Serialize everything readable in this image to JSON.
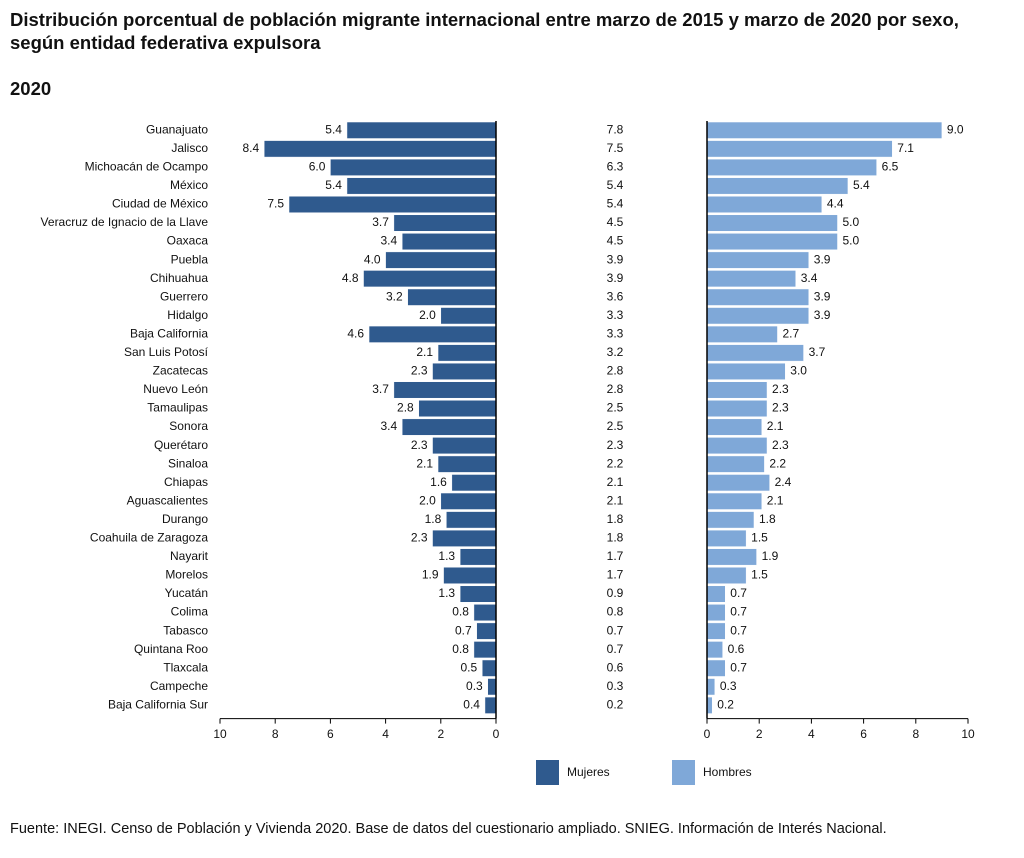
{
  "chart_data": {
    "type": "butterfly",
    "title": "Distribución porcentual de población migrante internacional entre marzo de 2015 y marzo de 2020 por sexo, según entidad federativa expulsora",
    "subtitle": "2020",
    "source": "Fuente: INEGI. Censo de Población y Vivienda 2020. Base de datos del cuestionario ampliado. SNIEG. Información de Interés Nacional.",
    "categories": [
      "Guanajuato",
      "Jalisco",
      "Michoacán de Ocampo",
      "México",
      "Ciudad de México",
      "Veracruz de Ignacio de la Llave",
      "Oaxaca",
      "Puebla",
      "Chihuahua",
      "Guerrero",
      "Hidalgo",
      "Baja California",
      "San Luis Potosí",
      "Zacatecas",
      "Nuevo León",
      "Tamaulipas",
      "Sonora",
      "Querétaro",
      "Sinaloa",
      "Chiapas",
      "Aguascalientes",
      "Durango",
      "Coahuila de Zaragoza",
      "Nayarit",
      "Morelos",
      "Yucatán",
      "Colima",
      "Tabasco",
      "Quintana Roo",
      "Tlaxcala",
      "Campeche",
      "Baja California Sur"
    ],
    "center_values": [
      7.8,
      7.5,
      6.3,
      5.4,
      5.4,
      4.5,
      4.5,
      3.9,
      3.9,
      3.6,
      3.3,
      3.3,
      3.2,
      2.8,
      2.8,
      2.5,
      2.5,
      2.3,
      2.2,
      2.1,
      2.1,
      1.8,
      1.8,
      1.7,
      1.7,
      0.9,
      0.8,
      0.7,
      0.7,
      0.6,
      0.3,
      0.2
    ],
    "series": [
      {
        "name": "Mujeres",
        "color": "#2f5a8e",
        "side": "left",
        "values": [
          5.4,
          8.4,
          6.0,
          5.4,
          7.5,
          3.7,
          3.4,
          4.0,
          4.8,
          3.2,
          2.0,
          4.6,
          2.1,
          2.3,
          3.7,
          2.8,
          3.4,
          2.3,
          2.1,
          1.6,
          2.0,
          1.8,
          2.3,
          1.3,
          1.9,
          1.3,
          0.8,
          0.7,
          0.8,
          0.5,
          0.3,
          0.4
        ],
        "value_labels": [
          "5.4",
          "8.4",
          "6.0",
          "5.4",
          "7.5",
          "3.7",
          "3.4",
          "4.0",
          "4.8",
          "3.2",
          "2.0",
          "4.6",
          "2.1",
          "2.3",
          "3.7",
          "2.8",
          "3.4",
          "2.3",
          "2.1",
          "1.6",
          "2.0",
          "1.8",
          "2.3",
          "1.3",
          "1.9",
          "1.3",
          "0.8",
          "0.7",
          "0.8",
          "0.5",
          "0.3",
          "0.4"
        ]
      },
      {
        "name": "Hombres",
        "color": "#7fa8d8",
        "side": "right",
        "values": [
          9.0,
          7.1,
          6.5,
          5.4,
          4.4,
          5.0,
          5.0,
          3.9,
          3.4,
          3.9,
          3.9,
          2.7,
          3.7,
          3.0,
          2.3,
          2.3,
          2.1,
          2.3,
          2.2,
          2.4,
          2.1,
          1.8,
          1.5,
          1.9,
          1.5,
          0.7,
          0.7,
          0.7,
          0.6,
          0.7,
          0.3,
          0.2
        ],
        "value_labels": [
          "9.0",
          "7.1",
          "6.5",
          "5.4",
          "4.4",
          "5.0",
          "5.0",
          "3.9",
          "3.4",
          "3.9",
          "3.9",
          "2.7",
          "3.7",
          "3.0",
          "2.3",
          "2.3",
          "2.1",
          "2.3",
          "2.2",
          "2.4",
          "2.1",
          "1.8",
          "1.5",
          "1.9",
          "1.5",
          "0.7",
          "0.7",
          "0.7",
          "0.6",
          "0.7",
          "0.3",
          "0.2"
        ]
      }
    ],
    "xlim_left": [
      10,
      0
    ],
    "xlim_right": [
      0,
      10
    ],
    "xticks": [
      0,
      2,
      4,
      6,
      8,
      10
    ]
  }
}
